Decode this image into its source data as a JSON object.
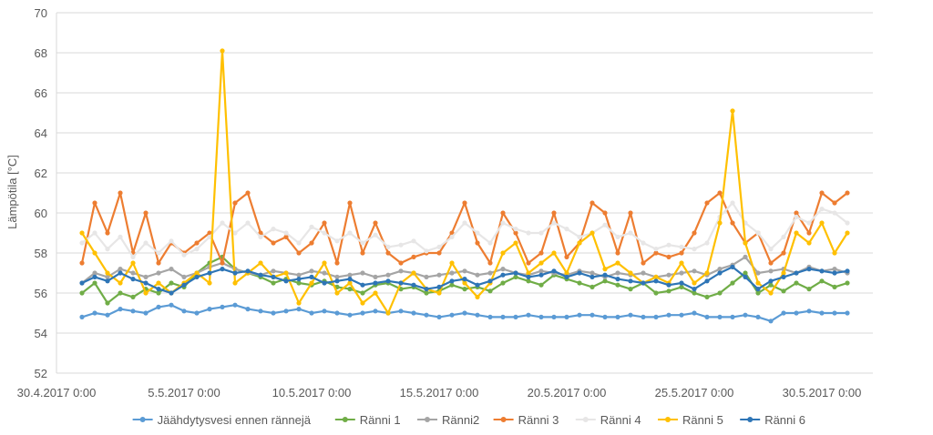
{
  "chart_data": {
    "type": "line",
    "title": "",
    "ylabel": "Lämpötila [°C]",
    "xlabel": "",
    "ylim": [
      52,
      70
    ],
    "yticks": [
      "52",
      "54",
      "56",
      "58",
      "60",
      "62",
      "64",
      "66",
      "68",
      "70"
    ],
    "xlim": [
      "30.4.2017 0:00",
      "1.6.2017 0:00"
    ],
    "xticks": [
      "30.4.2017 0:00",
      "5.5.2017 0:00",
      "10.5.2017 0:00",
      "15.5.2017 0:00",
      "20.5.2017 0:00",
      "25.5.2017 0:00",
      "30.5.2017 0:00"
    ],
    "grid": "horizontal",
    "legend_position": "bottom",
    "x": [
      "1.5.2017 0:00",
      "1.5.2017 12:00",
      "2.5.2017 0:00",
      "2.5.2017 12:00",
      "3.5.2017 0:00",
      "3.5.2017 12:00",
      "4.5.2017 0:00",
      "4.5.2017 12:00",
      "5.5.2017 0:00",
      "5.5.2017 12:00",
      "6.5.2017 0:00",
      "6.5.2017 12:00",
      "7.5.2017 0:00",
      "7.5.2017 12:00",
      "8.5.2017 0:00",
      "8.5.2017 12:00",
      "9.5.2017 0:00",
      "9.5.2017 12:00",
      "10.5.2017 0:00",
      "10.5.2017 12:00",
      "11.5.2017 0:00",
      "11.5.2017 12:00",
      "12.5.2017 0:00",
      "12.5.2017 12:00",
      "13.5.2017 0:00",
      "13.5.2017 12:00",
      "14.5.2017 0:00",
      "14.5.2017 12:00",
      "15.5.2017 0:00",
      "15.5.2017 12:00",
      "16.5.2017 0:00",
      "16.5.2017 12:00",
      "17.5.2017 0:00",
      "17.5.2017 12:00",
      "18.5.2017 0:00",
      "18.5.2017 12:00",
      "19.5.2017 0:00",
      "19.5.2017 12:00",
      "20.5.2017 0:00",
      "20.5.2017 12:00",
      "21.5.2017 0:00",
      "21.5.2017 12:00",
      "22.5.2017 0:00",
      "22.5.2017 12:00",
      "23.5.2017 0:00",
      "23.5.2017 12:00",
      "24.5.2017 0:00",
      "24.5.2017 12:00",
      "25.5.2017 0:00",
      "25.5.2017 12:00",
      "26.5.2017 0:00",
      "26.5.2017 12:00",
      "27.5.2017 0:00",
      "27.5.2017 12:00",
      "28.5.2017 0:00",
      "28.5.2017 12:00",
      "29.5.2017 0:00",
      "29.5.2017 12:00",
      "30.5.2017 0:00",
      "30.5.2017 12:00",
      "31.5.2017 0:00"
    ],
    "series": [
      {
        "name": "Jäähdytysvesi ennen rännejä",
        "color": "#5B9BD5",
        "values": [
          54.8,
          55.0,
          54.9,
          55.2,
          55.1,
          55.0,
          55.3,
          55.4,
          55.1,
          55.0,
          55.2,
          55.3,
          55.4,
          55.2,
          55.1,
          55.0,
          55.1,
          55.2,
          55.0,
          55.1,
          55.0,
          54.9,
          55.0,
          55.1,
          55.0,
          55.1,
          55.0,
          54.9,
          54.8,
          54.9,
          55.0,
          54.9,
          54.8,
          54.8,
          54.8,
          54.9,
          54.8,
          54.8,
          54.8,
          54.9,
          54.9,
          54.8,
          54.8,
          54.9,
          54.8,
          54.8,
          54.9,
          54.9,
          55.0,
          54.8,
          54.8,
          54.8,
          54.9,
          54.8,
          54.6,
          55.0,
          55.0,
          55.1,
          55.0,
          55.0,
          55.0
        ]
      },
      {
        "name": "Ränni 1",
        "color": "#70AD47",
        "values": [
          56.0,
          56.5,
          55.5,
          56.0,
          55.8,
          56.2,
          56.0,
          56.5,
          56.3,
          57.0,
          57.5,
          57.8,
          57.2,
          57.0,
          56.8,
          56.5,
          56.7,
          56.5,
          56.4,
          56.6,
          56.3,
          56.2,
          56.0,
          56.4,
          56.5,
          56.2,
          56.3,
          56.0,
          56.1,
          56.4,
          56.2,
          56.3,
          56.1,
          56.5,
          56.8,
          56.6,
          56.4,
          56.9,
          56.7,
          56.5,
          56.3,
          56.6,
          56.4,
          56.2,
          56.5,
          56.0,
          56.1,
          56.3,
          56.0,
          55.8,
          56.0,
          56.5,
          57.0,
          56.0,
          56.4,
          56.1,
          56.5,
          56.2,
          56.6,
          56.3,
          56.5
        ]
      },
      {
        "name": "Ränni2",
        "color": "#A5A5A5",
        "values": [
          56.5,
          57.0,
          56.8,
          57.2,
          57.0,
          56.8,
          57.0,
          57.2,
          56.8,
          57.0,
          57.3,
          57.5,
          57.2,
          57.0,
          56.9,
          57.1,
          57.0,
          56.9,
          57.1,
          57.0,
          56.8,
          56.9,
          57.0,
          56.8,
          56.9,
          57.1,
          57.0,
          56.8,
          56.9,
          57.0,
          57.1,
          56.9,
          57.0,
          57.2,
          57.0,
          56.9,
          57.1,
          57.0,
          56.9,
          57.1,
          57.0,
          56.8,
          57.0,
          56.9,
          57.0,
          56.8,
          56.9,
          57.0,
          57.1,
          56.9,
          57.2,
          57.4,
          57.8,
          57.0,
          57.1,
          57.2,
          57.0,
          57.3,
          57.1,
          57.2,
          57.0
        ]
      },
      {
        "name": "Ränni 3",
        "color": "#ED7D31",
        "values": [
          57.5,
          60.5,
          59.0,
          61.0,
          58.0,
          60.0,
          57.5,
          58.5,
          58.0,
          58.5,
          59.0,
          57.5,
          60.5,
          61.0,
          59.0,
          58.5,
          58.8,
          58.0,
          58.5,
          59.5,
          57.5,
          60.5,
          58.0,
          59.5,
          58.0,
          57.5,
          57.8,
          58.0,
          58.0,
          59.0,
          60.5,
          58.5,
          57.5,
          60.0,
          59.0,
          57.5,
          58.0,
          60.0,
          57.8,
          58.5,
          60.5,
          60.0,
          58.0,
          60.0,
          57.5,
          58.0,
          57.8,
          58.0,
          59.0,
          60.5,
          61.0,
          59.5,
          58.5,
          59.0,
          57.5,
          58.0,
          60.0,
          59.0,
          61.0,
          60.5,
          61.0
        ]
      },
      {
        "name": "Ränni 4",
        "color": "#E7E6E6",
        "values": [
          58.5,
          59.0,
          58.2,
          58.8,
          57.8,
          58.5,
          58.0,
          58.6,
          57.9,
          58.2,
          58.8,
          59.5,
          59.0,
          59.5,
          58.8,
          59.2,
          59.0,
          58.5,
          59.3,
          59.0,
          58.6,
          59.0,
          58.5,
          58.9,
          58.3,
          58.4,
          58.6,
          58.1,
          58.3,
          58.8,
          59.5,
          59.0,
          58.5,
          59.5,
          59.2,
          59.0,
          59.0,
          59.5,
          59.2,
          58.8,
          59.0,
          59.4,
          58.8,
          59.0,
          58.5,
          58.2,
          58.4,
          58.3,
          58.2,
          58.5,
          59.8,
          60.5,
          59.5,
          59.0,
          58.2,
          58.8,
          59.8,
          59.5,
          60.2,
          60.0,
          59.5
        ]
      },
      {
        "name": "Ränni 5",
        "color": "#FFC000",
        "values": [
          59.0,
          58.0,
          57.0,
          56.5,
          57.5,
          56.0,
          56.5,
          56.0,
          56.5,
          57.0,
          56.5,
          68.1,
          56.5,
          57.0,
          57.5,
          56.8,
          57.0,
          55.5,
          56.5,
          57.5,
          56.0,
          56.5,
          55.5,
          56.0,
          55.0,
          56.5,
          57.0,
          56.2,
          56.0,
          57.5,
          56.5,
          55.8,
          56.5,
          58.0,
          58.5,
          57.0,
          57.5,
          58.0,
          57.0,
          58.5,
          59.0,
          57.2,
          57.5,
          57.0,
          56.5,
          56.8,
          56.5,
          57.5,
          56.5,
          57.0,
          59.5,
          65.1,
          58.5,
          56.5,
          56.0,
          57.0,
          59.0,
          58.5,
          59.5,
          58.0,
          59.0
        ]
      },
      {
        "name": "Ränni 6",
        "color": "#2E75B6",
        "values": [
          56.5,
          56.8,
          56.6,
          57.0,
          56.7,
          56.5,
          56.2,
          56.0,
          56.4,
          56.8,
          57.0,
          57.2,
          57.0,
          57.1,
          56.9,
          56.8,
          56.6,
          56.7,
          56.8,
          56.5,
          56.6,
          56.7,
          56.4,
          56.5,
          56.6,
          56.5,
          56.4,
          56.2,
          56.3,
          56.6,
          56.7,
          56.4,
          56.6,
          56.9,
          57.0,
          56.8,
          56.9,
          57.1,
          56.8,
          57.0,
          56.8,
          56.9,
          56.7,
          56.6,
          56.5,
          56.6,
          56.4,
          56.5,
          56.2,
          56.6,
          57.0,
          57.3,
          56.8,
          56.2,
          56.6,
          56.8,
          57.0,
          57.2,
          57.1,
          57.0,
          57.1
        ]
      }
    ]
  }
}
